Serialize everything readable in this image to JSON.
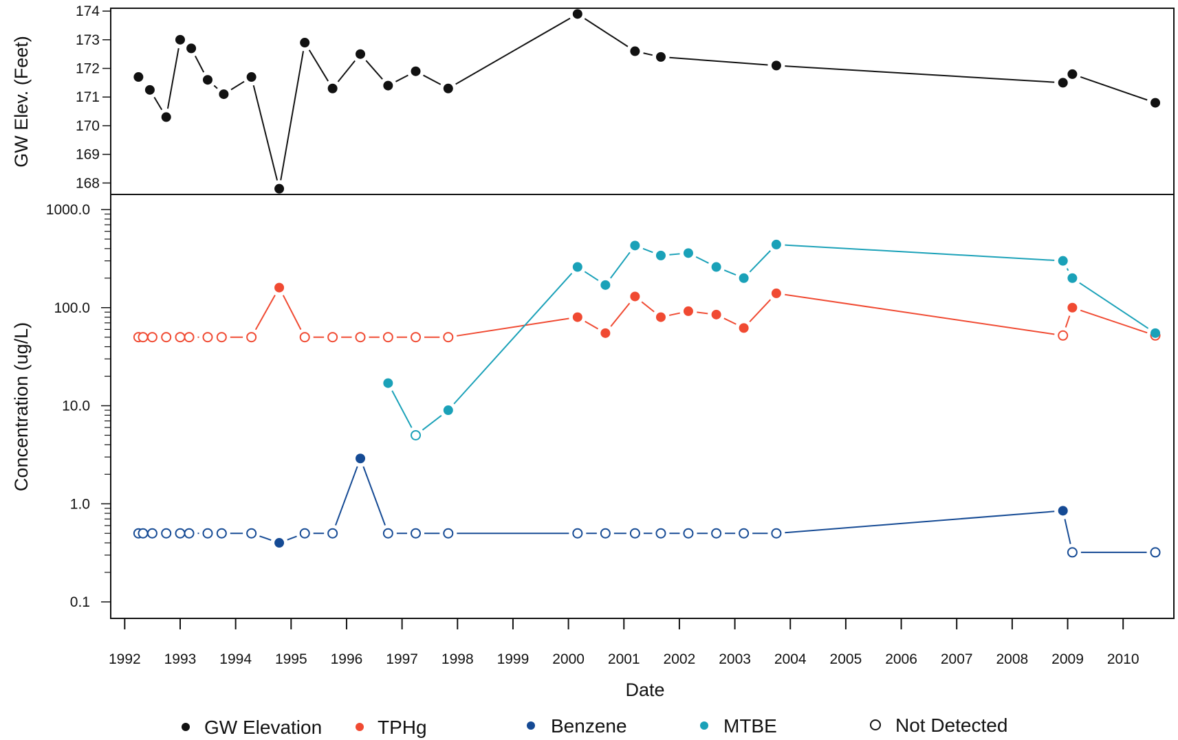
{
  "chart_data": [
    {
      "type": "line",
      "ylabel": "GW Elev. (Feet)",
      "yticks": [
        "168",
        "169",
        "170",
        "171",
        "172",
        "173",
        "174"
      ],
      "ylim": [
        167.6,
        174.1
      ],
      "series": [
        {
          "name": "GW Elevation",
          "color": "#111111",
          "points": [
            {
              "x": "1992-04-01",
              "y": 171.7,
              "detected": true
            },
            {
              "x": "1992-06-15",
              "y": 171.25,
              "detected": true
            },
            {
              "x": "1992-10-01",
              "y": 170.3,
              "detected": true
            },
            {
              "x": "1993-01-01",
              "y": 173.0,
              "detected": true
            },
            {
              "x": "1993-03-15",
              "y": 172.7,
              "detected": true
            },
            {
              "x": "1993-07-01",
              "y": 171.6,
              "detected": true
            },
            {
              "x": "1993-10-15",
              "y": 171.1,
              "detected": true
            },
            {
              "x": "1994-04-15",
              "y": 171.7,
              "detected": true
            },
            {
              "x": "1994-10-15",
              "y": 167.8,
              "detected": true
            },
            {
              "x": "1995-04-01",
              "y": 172.9,
              "detected": true
            },
            {
              "x": "1995-10-01",
              "y": 171.3,
              "detected": true
            },
            {
              "x": "1996-04-01",
              "y": 172.5,
              "detected": true
            },
            {
              "x": "1996-10-01",
              "y": 171.4,
              "detected": true
            },
            {
              "x": "1997-04-01",
              "y": 171.9,
              "detected": true
            },
            {
              "x": "1997-11-01",
              "y": 171.3,
              "detected": true
            },
            {
              "x": "2000-03-01",
              "y": 173.9,
              "detected": true
            },
            {
              "x": "2001-03-15",
              "y": 172.6,
              "detected": true
            },
            {
              "x": "2001-09-01",
              "y": 172.4,
              "detected": true
            },
            {
              "x": "2003-10-01",
              "y": 172.1,
              "detected": true
            },
            {
              "x": "2008-12-01",
              "y": 171.5,
              "detected": true
            },
            {
              "x": "2009-02-01",
              "y": 171.8,
              "detected": true
            },
            {
              "x": "2010-08-01",
              "y": 170.8,
              "detected": true
            }
          ]
        }
      ]
    },
    {
      "type": "line",
      "xlabel": "Date",
      "ylabel": "Concentration (ug/L)",
      "yscale": "log",
      "yticks": [
        "0.1",
        "1.0",
        "10.0",
        "100.0",
        "1000.0"
      ],
      "ylim": [
        0.1,
        1000
      ],
      "xticks": [
        "1992",
        "1993",
        "1994",
        "1995",
        "1996",
        "1997",
        "1998",
        "1999",
        "2000",
        "2001",
        "2002",
        "2003",
        "2004",
        "2005",
        "2006",
        "2007",
        "2008",
        "2009",
        "2010"
      ],
      "xlim": [
        "1991-10-01",
        "2010-12-01"
      ],
      "series": [
        {
          "name": "TPHg",
          "color": "#f04a32",
          "points": [
            {
              "x": "1992-04-01",
              "y": 50,
              "detected": false
            },
            {
              "x": "1992-05-01",
              "y": 50,
              "detected": false
            },
            {
              "x": "1992-07-01",
              "y": 50,
              "detected": false
            },
            {
              "x": "1992-10-01",
              "y": 50,
              "detected": false
            },
            {
              "x": "1993-01-01",
              "y": 50,
              "detected": false
            },
            {
              "x": "1993-03-01",
              "y": 50,
              "detected": false
            },
            {
              "x": "1993-07-01",
              "y": 50,
              "detected": false
            },
            {
              "x": "1993-10-01",
              "y": 50,
              "detected": false
            },
            {
              "x": "1994-04-15",
              "y": 50,
              "detected": false
            },
            {
              "x": "1994-10-15",
              "y": 160,
              "detected": true
            },
            {
              "x": "1995-04-01",
              "y": 50,
              "detected": false
            },
            {
              "x": "1995-10-01",
              "y": 50,
              "detected": false
            },
            {
              "x": "1996-04-01",
              "y": 50,
              "detected": false
            },
            {
              "x": "1996-10-01",
              "y": 50,
              "detected": false
            },
            {
              "x": "1997-04-01",
              "y": 50,
              "detected": false
            },
            {
              "x": "1997-11-01",
              "y": 50,
              "detected": false
            },
            {
              "x": "2000-03-01",
              "y": 80,
              "detected": true
            },
            {
              "x": "2000-09-01",
              "y": 55,
              "detected": true
            },
            {
              "x": "2001-03-15",
              "y": 130,
              "detected": true
            },
            {
              "x": "2001-09-01",
              "y": 80,
              "detected": true
            },
            {
              "x": "2002-03-01",
              "y": 92,
              "detected": true
            },
            {
              "x": "2002-09-01",
              "y": 85,
              "detected": true
            },
            {
              "x": "2003-03-01",
              "y": 62,
              "detected": true
            },
            {
              "x": "2003-10-01",
              "y": 140,
              "detected": true
            },
            {
              "x": "2008-12-01",
              "y": 52,
              "detected": false
            },
            {
              "x": "2009-02-01",
              "y": 100,
              "detected": true
            },
            {
              "x": "2010-08-01",
              "y": 52,
              "detected": false
            }
          ]
        },
        {
          "name": "MTBE",
          "color": "#1aa1b8",
          "points": [
            {
              "x": "1996-10-01",
              "y": 17,
              "detected": true
            },
            {
              "x": "1997-04-01",
              "y": 5,
              "detected": false
            },
            {
              "x": "1997-11-01",
              "y": 9,
              "detected": true
            },
            {
              "x": "2000-03-01",
              "y": 260,
              "detected": true
            },
            {
              "x": "2000-09-01",
              "y": 170,
              "detected": true
            },
            {
              "x": "2001-03-15",
              "y": 430,
              "detected": true
            },
            {
              "x": "2001-09-01",
              "y": 340,
              "detected": true
            },
            {
              "x": "2002-03-01",
              "y": 360,
              "detected": true
            },
            {
              "x": "2002-09-01",
              "y": 260,
              "detected": true
            },
            {
              "x": "2003-03-01",
              "y": 200,
              "detected": true
            },
            {
              "x": "2003-10-01",
              "y": 440,
              "detected": true
            },
            {
              "x": "2008-12-01",
              "y": 300,
              "detected": true
            },
            {
              "x": "2009-02-01",
              "y": 200,
              "detected": true
            },
            {
              "x": "2010-08-01",
              "y": 55,
              "detected": true
            }
          ]
        },
        {
          "name": "Benzene",
          "color": "#154a94",
          "points": [
            {
              "x": "1992-04-01",
              "y": 0.5,
              "detected": false
            },
            {
              "x": "1992-05-01",
              "y": 0.5,
              "detected": false
            },
            {
              "x": "1992-07-01",
              "y": 0.5,
              "detected": false
            },
            {
              "x": "1992-10-01",
              "y": 0.5,
              "detected": false
            },
            {
              "x": "1993-01-01",
              "y": 0.5,
              "detected": false
            },
            {
              "x": "1993-03-01",
              "y": 0.5,
              "detected": false
            },
            {
              "x": "1993-07-01",
              "y": 0.5,
              "detected": false
            },
            {
              "x": "1993-10-01",
              "y": 0.5,
              "detected": false
            },
            {
              "x": "1994-04-15",
              "y": 0.5,
              "detected": false
            },
            {
              "x": "1994-10-15",
              "y": 0.4,
              "detected": true
            },
            {
              "x": "1995-04-01",
              "y": 0.5,
              "detected": false
            },
            {
              "x": "1995-10-01",
              "y": 0.5,
              "detected": false
            },
            {
              "x": "1996-04-01",
              "y": 2.9,
              "detected": true
            },
            {
              "x": "1996-10-01",
              "y": 0.5,
              "detected": false
            },
            {
              "x": "1997-04-01",
              "y": 0.5,
              "detected": false
            },
            {
              "x": "1997-11-01",
              "y": 0.5,
              "detected": false
            },
            {
              "x": "2000-03-01",
              "y": 0.5,
              "detected": false
            },
            {
              "x": "2000-09-01",
              "y": 0.5,
              "detected": false
            },
            {
              "x": "2001-03-15",
              "y": 0.5,
              "detected": false
            },
            {
              "x": "2001-09-01",
              "y": 0.5,
              "detected": false
            },
            {
              "x": "2002-03-01",
              "y": 0.5,
              "detected": false
            },
            {
              "x": "2002-09-01",
              "y": 0.5,
              "detected": false
            },
            {
              "x": "2003-03-01",
              "y": 0.5,
              "detected": false
            },
            {
              "x": "2003-10-01",
              "y": 0.5,
              "detected": false
            },
            {
              "x": "2008-12-01",
              "y": 0.85,
              "detected": true
            },
            {
              "x": "2009-02-01",
              "y": 0.32,
              "detected": false
            },
            {
              "x": "2010-08-01",
              "y": 0.32,
              "detected": false
            }
          ]
        }
      ]
    }
  ],
  "legend": {
    "position": "bottom",
    "items": [
      {
        "label": "GW Elevation",
        "color": "#111111",
        "filled": true
      },
      {
        "label": "TPHg",
        "color": "#f04a32",
        "filled": true
      },
      {
        "label": "Benzene",
        "color": "#154a94",
        "filled": true
      },
      {
        "label": "MTBE",
        "color": "#1aa1b8",
        "filled": true
      },
      {
        "label": "Not Detected",
        "color": "#111111",
        "filled": false
      }
    ]
  }
}
